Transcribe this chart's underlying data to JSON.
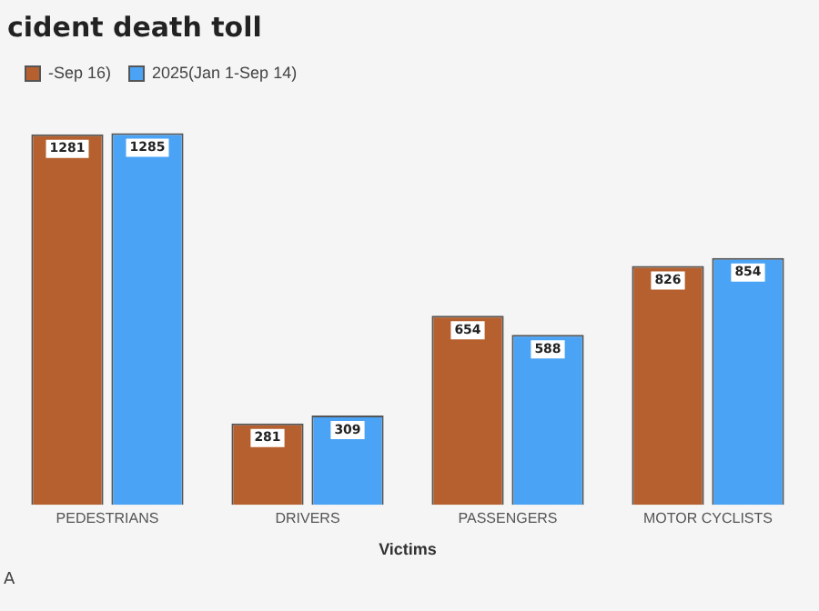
{
  "chart_data": {
    "type": "bar",
    "title": "cident death toll",
    "xlabel": "Victims",
    "categories": [
      "PEDESTRIANS",
      "DRIVERS",
      "PASSENGERS",
      "MOTOR CYCLISTS"
    ],
    "series": [
      {
        "name": "-Sep 16)",
        "color": "#b5602e",
        "values": [
          1281,
          281,
          654,
          826
        ]
      },
      {
        "name": "2025(Jan 1-Sep 14)",
        "color": "#4aa3f5",
        "values": [
          1285,
          309,
          588,
          854
        ]
      }
    ],
    "data_labels": true,
    "legend": "top left",
    "grid": false,
    "annotations": [
      "A"
    ]
  }
}
